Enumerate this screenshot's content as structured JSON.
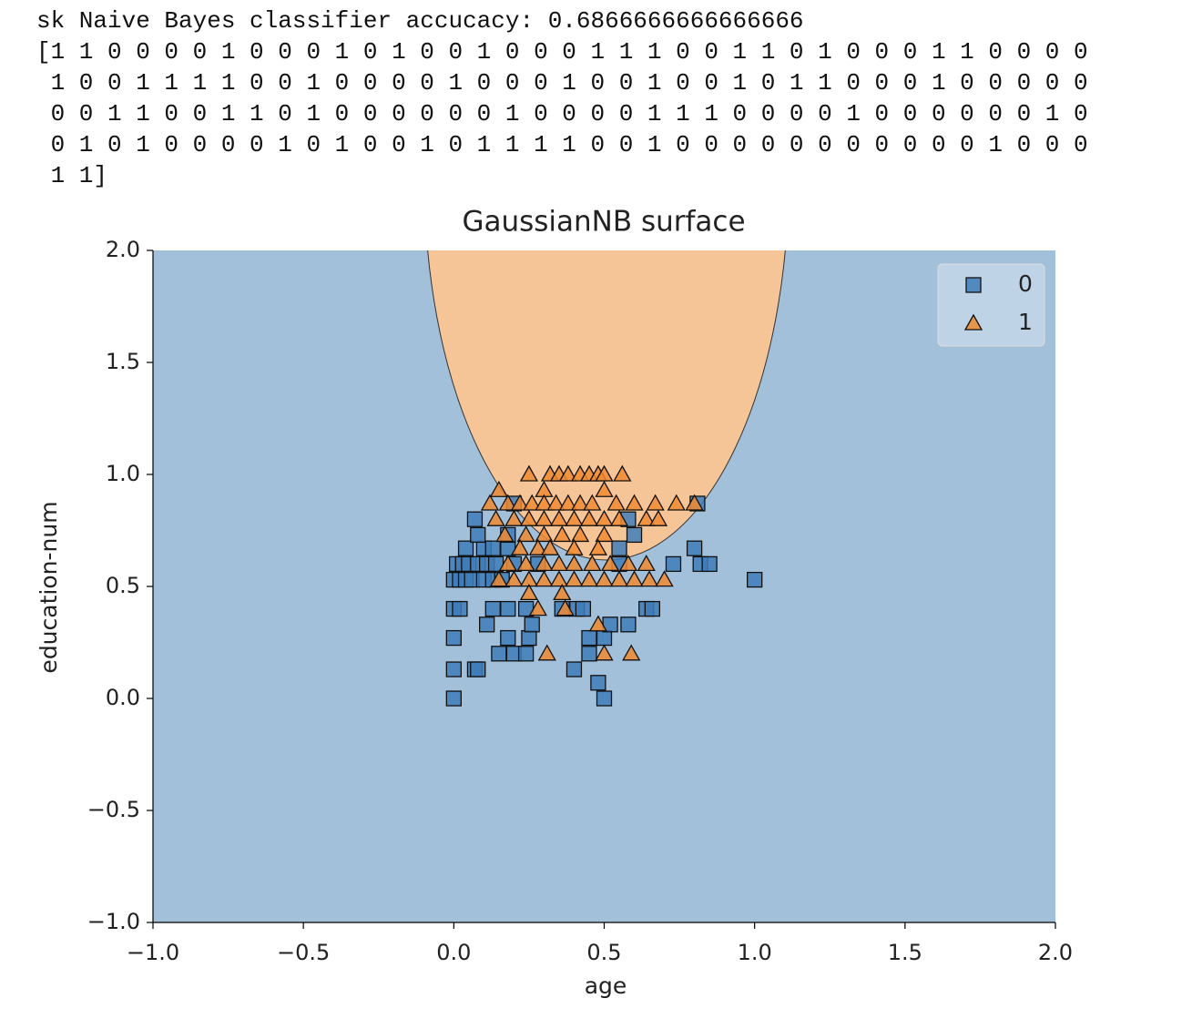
{
  "output_text": [
    "sk Naive Bayes classifier accucacy: 0.6866666666666666",
    "[1 1 0 0 0 0 1 0 0 0 1 0 1 0 0 1 0 0 0 1 1 1 0 0 1 1 0 1 0 0 0 1 1 0 0 0 0",
    " 1 0 0 1 1 1 1 0 0 1 0 0 0 0 1 0 0 0 1 0 0 1 0 0 1 0 1 1 0 0 0 1 0 0 0 0 0",
    " 0 0 1 1 0 0 1 1 0 1 0 0 0 0 0 0 1 0 0 0 0 1 1 1 0 0 0 0 1 0 0 0 0 0 0 1 0",
    " 0 1 0 1 0 0 0 0 1 0 1 0 0 1 0 1 1 1 1 0 0 1 0 0 0 0 0 0 0 0 0 0 0 1 0 0 0",
    " 1 1]"
  ],
  "chart_data": {
    "type": "scatter",
    "title": "GaussianNB surface",
    "x_label": "age",
    "y_label": "education-num",
    "xlim": [
      -1,
      2
    ],
    "ylim": [
      -1,
      2
    ],
    "xticks": [
      {
        "value": -1,
        "label": "−1.0"
      },
      {
        "value": -0.5,
        "label": "−0.5"
      },
      {
        "value": 0,
        "label": "0.0"
      },
      0.5,
      {
        "value": 1,
        "label": "1.0"
      },
      1.5,
      {
        "value": 2,
        "label": "2.0"
      }
    ],
    "yticks": [
      {
        "value": -1,
        "label": "−1.0"
      },
      {
        "value": -0.5,
        "label": "−0.5"
      },
      {
        "value": 0,
        "label": "0.0"
      },
      0.5,
      {
        "value": 1,
        "label": "1.0"
      },
      1.5,
      {
        "value": 2,
        "label": "2.0"
      }
    ],
    "legend": "upper right",
    "series": [
      {
        "name": "0",
        "color": "#3f7cb8",
        "marker": "square",
        "x": [
          1.0,
          0,
          0.5,
          0.48,
          0,
          0.07,
          0.08,
          0.4,
          0,
          0.15,
          0.2,
          0.24,
          0.45,
          0.11,
          0.18,
          0.25,
          0.45,
          0.5,
          0.26,
          0.52,
          0.58,
          0,
          0.02,
          0.13,
          0.18,
          0.24,
          0.36,
          0.41,
          0.43,
          0.64,
          0.66,
          0,
          0.02,
          0.04,
          0.06,
          0.1,
          0.13,
          0.16,
          0.01,
          0.03,
          0.05,
          0.08,
          0.11,
          0.14,
          0.2,
          0.28,
          0.55,
          0.73,
          0.82,
          0.85,
          0.04,
          0.1,
          0.13,
          0.18,
          0.55,
          0.8,
          0.08,
          0.18,
          0.6,
          0.07,
          0.58,
          0.2,
          0.81
        ],
        "values": [
          0.53,
          0,
          0,
          0.07,
          0.13,
          0.13,
          0.13,
          0.13,
          0.27,
          0.2,
          0.2,
          0.2,
          0.2,
          0.33,
          0.27,
          0.27,
          0.27,
          0.27,
          0.33,
          0.33,
          0.33,
          0.4,
          0.4,
          0.4,
          0.4,
          0.4,
          0.4,
          0.4,
          0.4,
          0.4,
          0.4,
          0.53,
          0.53,
          0.53,
          0.53,
          0.53,
          0.53,
          0.53,
          0.6,
          0.6,
          0.6,
          0.6,
          0.6,
          0.6,
          0.6,
          0.6,
          0.6,
          0.6,
          0.6,
          0.6,
          0.67,
          0.67,
          0.67,
          0.67,
          0.67,
          0.67,
          0.73,
          0.73,
          0.73,
          0.8,
          0.8,
          0.87,
          0.87
        ]
      },
      {
        "name": "1",
        "color": "#f08a30",
        "marker": "triangle",
        "x": [
          0.25,
          0.32,
          0.35,
          0.38,
          0.42,
          0.45,
          0.48,
          0.5,
          0.56,
          0.15,
          0.3,
          0.5,
          0.12,
          0.18,
          0.22,
          0.26,
          0.3,
          0.34,
          0.38,
          0.42,
          0.46,
          0.54,
          0.6,
          0.67,
          0.74,
          0.8,
          0.14,
          0.2,
          0.25,
          0.3,
          0.35,
          0.4,
          0.45,
          0.5,
          0.55,
          0.64,
          0.68,
          0.17,
          0.24,
          0.3,
          0.36,
          0.42,
          0.5,
          0.22,
          0.28,
          0.32,
          0.4,
          0.48,
          0.18,
          0.24,
          0.3,
          0.35,
          0.4,
          0.46,
          0.52,
          0.58,
          0.64,
          0.15,
          0.2,
          0.25,
          0.3,
          0.35,
          0.4,
          0.45,
          0.5,
          0.55,
          0.6,
          0.65,
          0.7,
          0.25,
          0.36,
          0.28,
          0.37,
          0.48,
          0.31,
          0.5,
          0.59
        ],
        "values": [
          1.0,
          1.0,
          1.0,
          1.0,
          1.0,
          1.0,
          1.0,
          1.0,
          1.0,
          0.93,
          0.93,
          0.93,
          0.87,
          0.87,
          0.87,
          0.87,
          0.87,
          0.87,
          0.87,
          0.87,
          0.87,
          0.87,
          0.87,
          0.87,
          0.87,
          0.87,
          0.8,
          0.8,
          0.8,
          0.8,
          0.8,
          0.8,
          0.8,
          0.8,
          0.8,
          0.8,
          0.8,
          0.73,
          0.73,
          0.73,
          0.73,
          0.73,
          0.73,
          0.67,
          0.67,
          0.67,
          0.67,
          0.67,
          0.6,
          0.6,
          0.6,
          0.6,
          0.6,
          0.6,
          0.6,
          0.6,
          0.6,
          0.53,
          0.53,
          0.53,
          0.53,
          0.53,
          0.53,
          0.53,
          0.53,
          0.53,
          0.53,
          0.53,
          0.53,
          0.47,
          0.47,
          0.4,
          0.4,
          0.33,
          0.2,
          0.2,
          0.2
        ]
      }
    ]
  }
}
